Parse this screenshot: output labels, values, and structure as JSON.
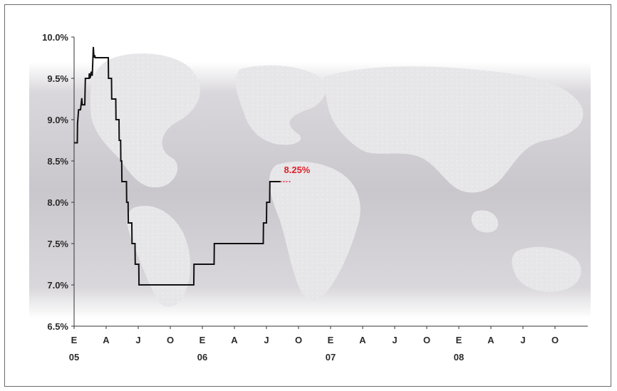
{
  "chart_data": {
    "type": "line",
    "title": "",
    "xlabel": "",
    "ylabel": "",
    "ylim": [
      6.5,
      10.0
    ],
    "y_ticks": [
      "6.5%",
      "7.0%",
      "7.5%",
      "8.0%",
      "8.5%",
      "9.0%",
      "9.5%",
      "10.0%"
    ],
    "x_ticks": [
      "E",
      "A",
      "J",
      "O",
      "E",
      "A",
      "J",
      "O",
      "E",
      "A",
      "J",
      "O",
      "E",
      "A",
      "J",
      "O"
    ],
    "year_labels": [
      {
        "label": "05",
        "tick_index": 0
      },
      {
        "label": "06",
        "tick_index": 4
      },
      {
        "label": "07",
        "tick_index": 8
      },
      {
        "label": "08",
        "tick_index": 12
      }
    ],
    "x_unit": "month index from Jan 2005",
    "series": [
      {
        "points": [
          [
            0.0,
            8.72
          ],
          [
            0.3,
            8.72
          ],
          [
            0.32,
            8.95
          ],
          [
            0.42,
            9.12
          ],
          [
            0.6,
            9.12
          ],
          [
            0.65,
            9.18
          ],
          [
            0.72,
            9.26
          ],
          [
            0.76,
            9.18
          ],
          [
            1.0,
            9.18
          ],
          [
            1.05,
            9.5
          ],
          [
            1.4,
            9.5
          ],
          [
            1.42,
            9.56
          ],
          [
            1.5,
            9.5
          ],
          [
            1.6,
            9.58
          ],
          [
            1.7,
            9.53
          ],
          [
            1.8,
            9.88
          ],
          [
            1.86,
            9.75
          ],
          [
            1.92,
            9.78
          ],
          [
            1.98,
            9.75
          ],
          [
            3.2,
            9.75
          ],
          [
            3.22,
            9.5
          ],
          [
            3.5,
            9.5
          ],
          [
            3.52,
            9.25
          ],
          [
            3.9,
            9.25
          ],
          [
            3.92,
            9.0
          ],
          [
            4.2,
            9.0
          ],
          [
            4.22,
            8.75
          ],
          [
            4.35,
            8.75
          ],
          [
            4.37,
            8.5
          ],
          [
            4.45,
            8.5
          ],
          [
            4.47,
            8.25
          ],
          [
            4.9,
            8.25
          ],
          [
            4.92,
            8.0
          ],
          [
            5.05,
            8.0
          ],
          [
            5.07,
            7.75
          ],
          [
            5.4,
            7.75
          ],
          [
            5.42,
            7.5
          ],
          [
            5.7,
            7.5
          ],
          [
            5.72,
            7.25
          ],
          [
            6.05,
            7.25
          ],
          [
            6.07,
            7.0
          ],
          [
            11.2,
            7.0
          ],
          [
            11.22,
            7.25
          ],
          [
            13.1,
            7.25
          ],
          [
            13.12,
            7.5
          ],
          [
            17.7,
            7.5
          ],
          [
            17.72,
            7.75
          ],
          [
            18.0,
            7.75
          ],
          [
            18.02,
            8.0
          ],
          [
            18.3,
            8.0
          ],
          [
            18.32,
            8.25
          ],
          [
            19.3,
            8.25
          ]
        ]
      }
    ],
    "last_value_label": "8.25%",
    "last_value": 8.25,
    "projection_x": [
      19.3,
      20.3
    ],
    "colors": {
      "line": "#111111",
      "callout": "#e0202a",
      "band": "#cfcdd1",
      "axis": "#333333"
    }
  }
}
